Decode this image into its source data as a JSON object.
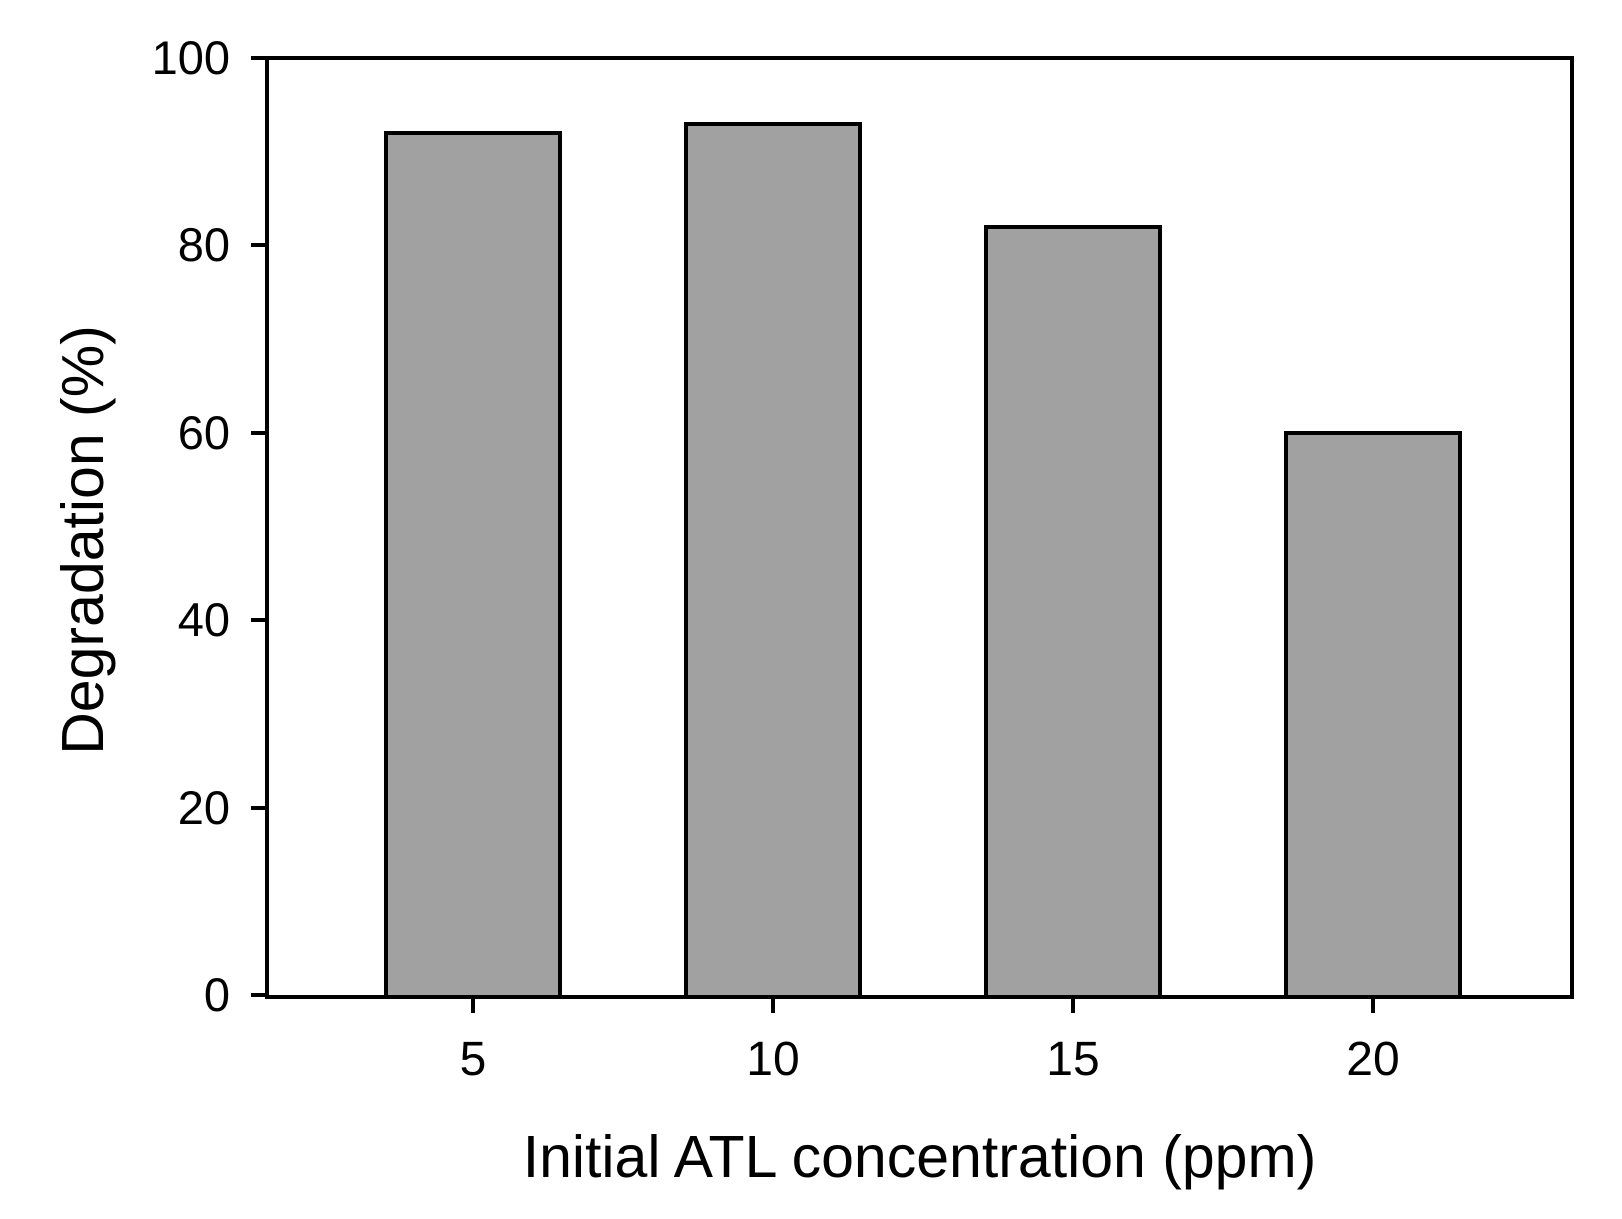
{
  "figure": {
    "background": "#ffffff",
    "text_color": "#000000"
  },
  "chart_data": {
    "type": "bar",
    "title": "",
    "xlabel": "Initial ATL concentration (ppm)",
    "ylabel": "Degradation (%)",
    "categories": [
      "5",
      "10",
      "15",
      "20"
    ],
    "values": [
      92,
      93,
      82,
      60
    ],
    "ylim": [
      0,
      100
    ],
    "yticks": [
      0,
      20,
      40,
      60,
      80,
      100
    ],
    "grid": false,
    "legend": "none",
    "bar_fill": "#a1a1a1",
    "bar_border": "#000000",
    "axis_color": "#000000"
  }
}
